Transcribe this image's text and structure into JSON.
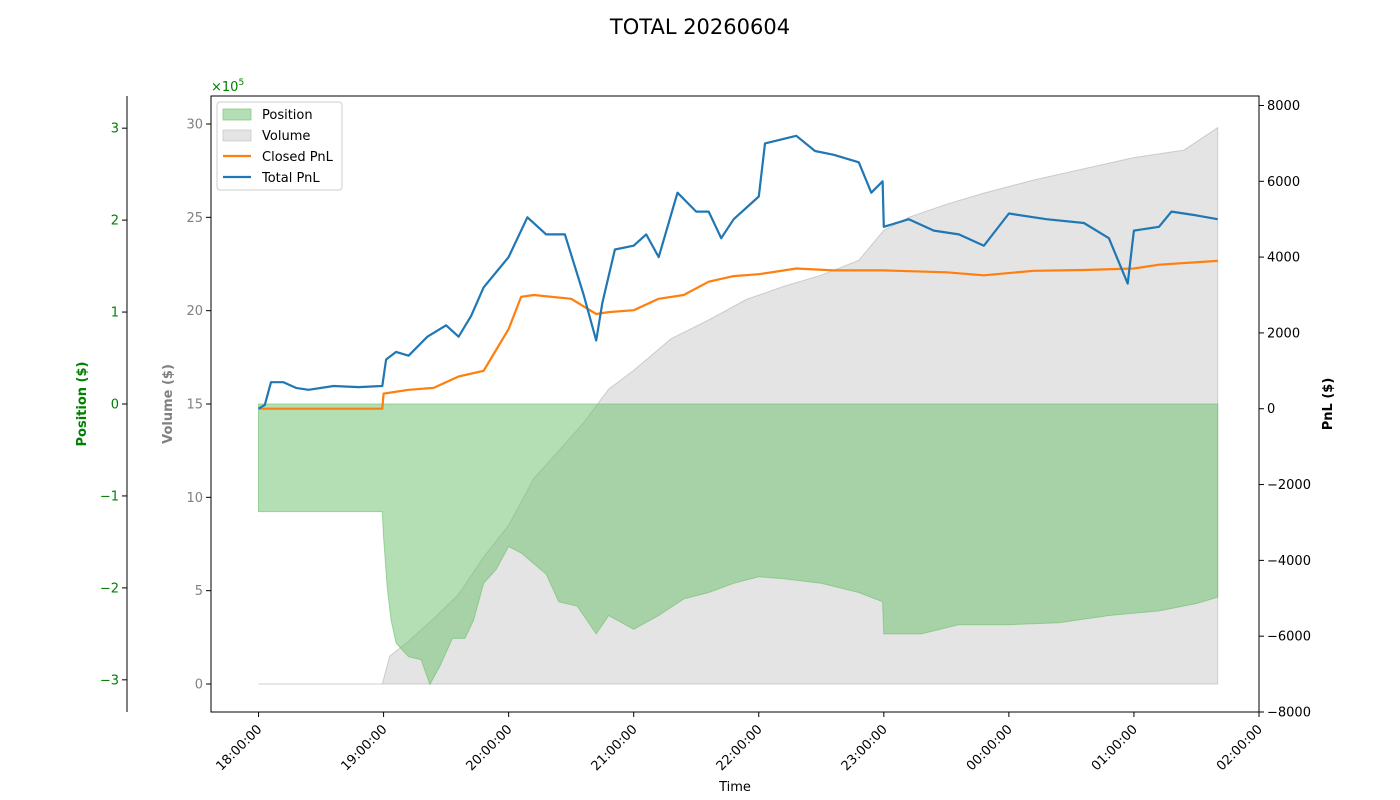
{
  "chart_data": {
    "type": "line",
    "title": "TOTAL 20260604",
    "xlabel": "Time",
    "x_ticks": [
      "18:00:00",
      "19:00:00",
      "20:00:00",
      "21:00:00",
      "22:00:00",
      "23:00:00",
      "00:00:00",
      "01:00:00",
      "02:00:00"
    ],
    "x_range_hours": [
      17.62,
      26.0
    ],
    "axes": {
      "position": {
        "label": "Position ($)",
        "color": "#008000",
        "ylim": [
          -3.35,
          3.35
        ],
        "ticks": [
          -3,
          -2,
          -1,
          0,
          1,
          2,
          3
        ],
        "tick_labels": [
          "−3",
          "−2",
          "−1",
          "0",
          "1",
          "2",
          "3"
        ],
        "multiplier_label": "×10",
        "multiplier_exp": "5"
      },
      "volume": {
        "label": "Volume ($)",
        "color": "#808080",
        "ylim": [
          -1.5,
          31.5
        ],
        "ticks": [
          0,
          5,
          10,
          15,
          20,
          25,
          30
        ],
        "tick_labels": [
          "0",
          "5",
          "10",
          "15",
          "20",
          "25",
          "30"
        ]
      },
      "pnl": {
        "label": "PnL ($)",
        "color": "#000000",
        "ylim": [
          -8000,
          8250
        ],
        "ticks": [
          -8000,
          -6000,
          -4000,
          -2000,
          0,
          2000,
          4000,
          6000,
          8000
        ],
        "tick_labels": [
          "−8000",
          "−6000",
          "−4000",
          "−2000",
          "0",
          "2000",
          "4000",
          "6000",
          "8000"
        ]
      }
    },
    "legend": {
      "placement": "top-left",
      "entries": [
        "Position",
        "Volume",
        "Closed PnL",
        "Total PnL"
      ]
    },
    "series": [
      {
        "name": "Position",
        "kind": "area",
        "axis": "position",
        "color": "#6abf69",
        "points": [
          [
            18.0,
            -1.17
          ],
          [
            18.99,
            -1.17
          ],
          [
            19.0,
            -1.45
          ],
          [
            19.03,
            -2.0
          ],
          [
            19.06,
            -2.35
          ],
          [
            19.1,
            -2.6
          ],
          [
            19.2,
            -2.75
          ],
          [
            19.3,
            -2.78
          ],
          [
            19.37,
            -3.05
          ],
          [
            19.45,
            -2.85
          ],
          [
            19.55,
            -2.55
          ],
          [
            19.65,
            -2.55
          ],
          [
            19.72,
            -2.35
          ],
          [
            19.8,
            -1.95
          ],
          [
            19.9,
            -1.8
          ],
          [
            20.0,
            -1.55
          ],
          [
            20.1,
            -1.62
          ],
          [
            20.3,
            -1.85
          ],
          [
            20.4,
            -2.15
          ],
          [
            20.55,
            -2.2
          ],
          [
            20.7,
            -2.5
          ],
          [
            20.8,
            -2.3
          ],
          [
            21.0,
            -2.45
          ],
          [
            21.2,
            -2.3
          ],
          [
            21.4,
            -2.12
          ],
          [
            21.6,
            -2.05
          ],
          [
            21.8,
            -1.95
          ],
          [
            22.0,
            -1.88
          ],
          [
            22.2,
            -1.9
          ],
          [
            22.5,
            -1.95
          ],
          [
            22.8,
            -2.05
          ],
          [
            22.99,
            -2.15
          ],
          [
            23.0,
            -2.5
          ],
          [
            23.3,
            -2.5
          ],
          [
            23.6,
            -2.4
          ],
          [
            24.0,
            -2.4
          ],
          [
            24.4,
            -2.38
          ],
          [
            24.8,
            -2.3
          ],
          [
            25.2,
            -2.25
          ],
          [
            25.5,
            -2.17
          ],
          [
            25.67,
            -2.1
          ],
          [
            25.67,
            0
          ]
        ]
      },
      {
        "name": "Volume",
        "kind": "area",
        "axis": "volume",
        "color": "#b3b3b3",
        "points": [
          [
            18.0,
            0
          ],
          [
            18.99,
            0
          ],
          [
            19.05,
            1.5
          ],
          [
            19.2,
            2.3
          ],
          [
            19.4,
            3.5
          ],
          [
            19.6,
            4.8
          ],
          [
            19.8,
            6.8
          ],
          [
            20.0,
            8.5
          ],
          [
            20.2,
            11.0
          ],
          [
            20.4,
            12.5
          ],
          [
            20.6,
            14.0
          ],
          [
            20.8,
            15.8
          ],
          [
            21.0,
            16.8
          ],
          [
            21.3,
            18.5
          ],
          [
            21.6,
            19.5
          ],
          [
            21.9,
            20.6
          ],
          [
            22.2,
            21.3
          ],
          [
            22.5,
            21.9
          ],
          [
            22.8,
            22.7
          ],
          [
            23.0,
            24.3
          ],
          [
            23.2,
            25.0
          ],
          [
            23.5,
            25.7
          ],
          [
            23.8,
            26.3
          ],
          [
            24.2,
            27.0
          ],
          [
            24.6,
            27.6
          ],
          [
            25.0,
            28.2
          ],
          [
            25.4,
            28.6
          ],
          [
            25.67,
            29.8
          ]
        ]
      },
      {
        "name": "Closed PnL",
        "kind": "line",
        "axis": "pnl",
        "color": "#ff7f0e",
        "points": [
          [
            18.0,
            0
          ],
          [
            18.99,
            0
          ],
          [
            19.0,
            400
          ],
          [
            19.2,
            500
          ],
          [
            19.4,
            550
          ],
          [
            19.6,
            850
          ],
          [
            19.8,
            1000
          ],
          [
            19.9,
            1550
          ],
          [
            20.0,
            2100
          ],
          [
            20.1,
            2950
          ],
          [
            20.2,
            3000
          ],
          [
            20.5,
            2900
          ],
          [
            20.7,
            2500
          ],
          [
            20.8,
            2550
          ],
          [
            21.0,
            2600
          ],
          [
            21.2,
            2900
          ],
          [
            21.4,
            3000
          ],
          [
            21.6,
            3350
          ],
          [
            21.8,
            3500
          ],
          [
            22.0,
            3550
          ],
          [
            22.3,
            3700
          ],
          [
            22.6,
            3650
          ],
          [
            23.0,
            3650
          ],
          [
            23.5,
            3600
          ],
          [
            23.8,
            3520
          ],
          [
            24.2,
            3640
          ],
          [
            24.6,
            3660
          ],
          [
            25.0,
            3700
          ],
          [
            25.2,
            3800
          ],
          [
            25.67,
            3900
          ]
        ]
      },
      {
        "name": "Total PnL",
        "kind": "line",
        "axis": "pnl",
        "color": "#1f77b4",
        "points": [
          [
            18.0,
            0
          ],
          [
            18.05,
            100
          ],
          [
            18.1,
            700
          ],
          [
            18.2,
            700
          ],
          [
            18.3,
            550
          ],
          [
            18.4,
            500
          ],
          [
            18.6,
            600
          ],
          [
            18.8,
            570
          ],
          [
            18.99,
            600
          ],
          [
            19.02,
            1300
          ],
          [
            19.1,
            1500
          ],
          [
            19.2,
            1400
          ],
          [
            19.35,
            1900
          ],
          [
            19.5,
            2200
          ],
          [
            19.6,
            1900
          ],
          [
            19.7,
            2450
          ],
          [
            19.8,
            3200
          ],
          [
            20.0,
            4000
          ],
          [
            20.15,
            5050
          ],
          [
            20.3,
            4600
          ],
          [
            20.45,
            4600
          ],
          [
            20.6,
            3000
          ],
          [
            20.7,
            1800
          ],
          [
            20.75,
            2800
          ],
          [
            20.85,
            4200
          ],
          [
            21.0,
            4300
          ],
          [
            21.1,
            4600
          ],
          [
            21.2,
            4000
          ],
          [
            21.35,
            5700
          ],
          [
            21.5,
            5200
          ],
          [
            21.6,
            5200
          ],
          [
            21.7,
            4500
          ],
          [
            21.8,
            5000
          ],
          [
            22.0,
            5600
          ],
          [
            22.05,
            7000
          ],
          [
            22.3,
            7200
          ],
          [
            22.45,
            6800
          ],
          [
            22.6,
            6700
          ],
          [
            22.8,
            6500
          ],
          [
            22.9,
            5700
          ],
          [
            22.99,
            6000
          ],
          [
            23.0,
            4800
          ],
          [
            23.2,
            5000
          ],
          [
            23.4,
            4700
          ],
          [
            23.6,
            4600
          ],
          [
            23.8,
            4300
          ],
          [
            24.0,
            5150
          ],
          [
            24.3,
            5000
          ],
          [
            24.6,
            4900
          ],
          [
            24.8,
            4500
          ],
          [
            24.95,
            3300
          ],
          [
            25.0,
            4700
          ],
          [
            25.2,
            4800
          ],
          [
            25.3,
            5200
          ],
          [
            25.5,
            5100
          ],
          [
            25.67,
            5000
          ]
        ]
      }
    ]
  }
}
